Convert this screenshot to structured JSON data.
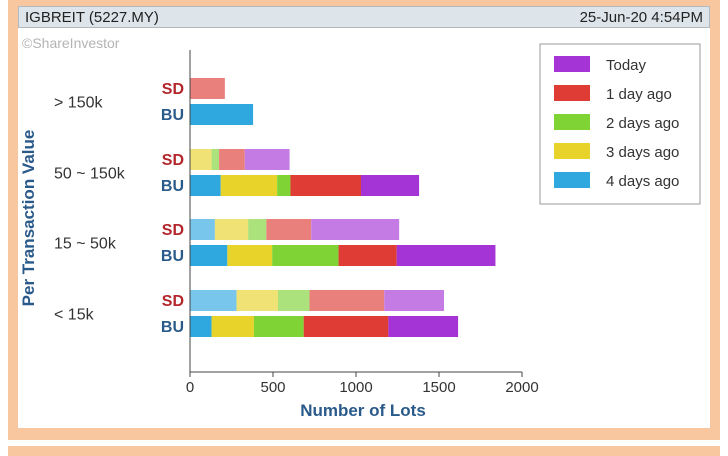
{
  "header": {
    "title": "IGBREIT (5227.MY)",
    "timestamp": "25-Jun-20 4:54PM"
  },
  "watermark": "©ShareInvestor",
  "chart_data": {
    "type": "bar",
    "orientation": "horizontal",
    "stacked": true,
    "xlabel": "Number of Lots",
    "ylabel": "Per Transaction Value",
    "xlim": [
      0,
      2000
    ],
    "xticks": [
      0,
      500,
      1000,
      1500,
      2000
    ],
    "groups": [
      "> 150k",
      "50 ~ 150k",
      "15 ~ 50k",
      "< 15k"
    ],
    "row_labels": [
      "SD",
      "BU"
    ],
    "legend_position": "top-right",
    "series": [
      {
        "name": "4 days ago",
        "color": "#2fa8e0",
        "SD": [
          0,
          0,
          150,
          280
        ],
        "BU": [
          380,
          185,
          225,
          130
        ]
      },
      {
        "name": "3 days ago",
        "color": "#e8d32a",
        "SD": [
          0,
          130,
          200,
          250
        ],
        "BU": [
          0,
          340,
          270,
          255
        ]
      },
      {
        "name": "2 days ago",
        "color": "#7fd334",
        "SD": [
          0,
          45,
          110,
          190
        ],
        "BU": [
          0,
          80,
          400,
          300
        ]
      },
      {
        "name": "1 day ago",
        "color": "#de3c34",
        "SD": [
          210,
          155,
          270,
          450
        ],
        "BU": [
          0,
          425,
          350,
          510
        ]
      },
      {
        "name": "Today",
        "color": "#a434d6",
        "SD": [
          0,
          270,
          530,
          360
        ],
        "BU": [
          0,
          350,
          595,
          420
        ]
      }
    ],
    "legend_order": [
      "Today",
      "1 day ago",
      "2 days ago",
      "3 days ago",
      "4 days ago"
    ]
  }
}
